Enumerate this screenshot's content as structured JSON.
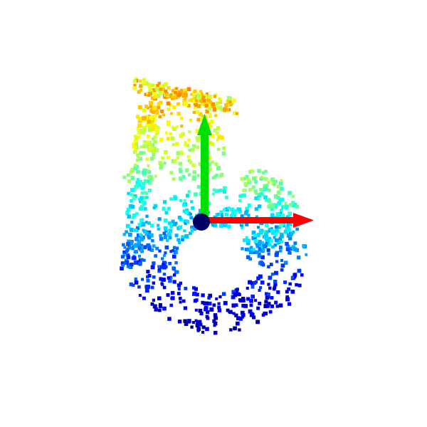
{
  "scene": {
    "type": "point-cloud-3d-view",
    "background_color": "#ffffff",
    "colormap": "jet",
    "colormap_stops": [
      "#00008f",
      "#0000ff",
      "#0080ff",
      "#00ffff",
      "#80ff80",
      "#ffff00",
      "#ff8000"
    ],
    "point_shape": "square",
    "axes": {
      "x_axis_color": "#ff0000",
      "y_axis_color": "#00e000",
      "origin_color": "#000066"
    }
  }
}
